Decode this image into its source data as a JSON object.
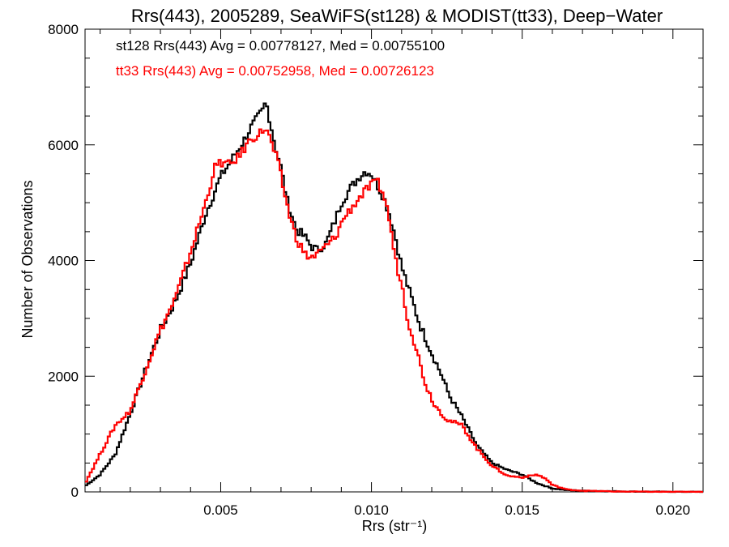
{
  "chart_data": {
    "type": "line",
    "title": "Rrs(443), 2005289, SeaWiFS(st128) & MODIST(tt33), Deep−Water",
    "xlabel": "Rrs (str⁻¹)",
    "ylabel": "Number of Observations",
    "xlim": [
      0.0005,
      0.021
    ],
    "ylim": [
      0,
      8000
    ],
    "x_ticks": [
      0.005,
      0.01,
      0.015,
      0.02
    ],
    "x_tick_labels": [
      "0.005",
      "0.010",
      "0.015",
      "0.020"
    ],
    "y_ticks": [
      0,
      2000,
      4000,
      6000,
      8000
    ],
    "y_tick_labels": [
      "0",
      "2000",
      "4000",
      "6000",
      "8000"
    ],
    "grid": false,
    "legend_position": "top-left",
    "series": [
      {
        "name": "st128 Rrs(443) Avg = 0.00778127, Med = 0.00755100",
        "color": "#000000",
        "x": [
          0.0005,
          0.001,
          0.0015,
          0.002,
          0.0025,
          0.003,
          0.0035,
          0.004,
          0.0045,
          0.005,
          0.0055,
          0.0058,
          0.006,
          0.0062,
          0.0064,
          0.0065,
          0.0066,
          0.0068,
          0.007,
          0.0072,
          0.0075,
          0.0078,
          0.008,
          0.0082,
          0.0085,
          0.0088,
          0.009,
          0.0093,
          0.0096,
          0.0098,
          0.01,
          0.0102,
          0.0104,
          0.0106,
          0.0108,
          0.011,
          0.0113,
          0.0116,
          0.012,
          0.0123,
          0.0126,
          0.013,
          0.0135,
          0.014,
          0.0145,
          0.015,
          0.0155,
          0.016,
          0.0165,
          0.017,
          0.018,
          0.019,
          0.02,
          0.021
        ],
        "y": [
          100,
          300,
          650,
          1350,
          2100,
          2800,
          3300,
          3950,
          4800,
          5450,
          5850,
          6100,
          6300,
          6450,
          6600,
          6750,
          6500,
          6000,
          5600,
          5050,
          4550,
          4400,
          4250,
          4180,
          4300,
          4700,
          5000,
          5250,
          5450,
          5550,
          5500,
          5300,
          5100,
          4800,
          4400,
          3900,
          3400,
          2900,
          2400,
          2050,
          1650,
          1300,
          800,
          500,
          380,
          300,
          150,
          60,
          30,
          20,
          10,
          5,
          2,
          0
        ]
      },
      {
        "name": "tt33 Rrs(443) Avg = 0.00752958, Med = 0.00726123",
        "color": "#ff0000",
        "x": [
          0.0005,
          0.001,
          0.0015,
          0.002,
          0.0025,
          0.003,
          0.0035,
          0.004,
          0.0045,
          0.0048,
          0.005,
          0.0053,
          0.0056,
          0.006,
          0.0063,
          0.0065,
          0.0067,
          0.0069,
          0.0071,
          0.0073,
          0.0075,
          0.0078,
          0.008,
          0.0082,
          0.0085,
          0.0088,
          0.0091,
          0.0094,
          0.0097,
          0.01,
          0.0102,
          0.0104,
          0.0106,
          0.0108,
          0.011,
          0.0112,
          0.0115,
          0.0118,
          0.0121,
          0.0125,
          0.013,
          0.0135,
          0.014,
          0.0145,
          0.015,
          0.0155,
          0.0158,
          0.016,
          0.0163,
          0.0165,
          0.017,
          0.018,
          0.019,
          0.02,
          0.021
        ],
        "y": [
          150,
          650,
          1150,
          1400,
          2100,
          2800,
          3350,
          4150,
          5000,
          5600,
          5700,
          5650,
          5800,
          6100,
          6200,
          6300,
          6000,
          5700,
          5200,
          4750,
          4400,
          4100,
          4050,
          4100,
          4250,
          4400,
          4750,
          4950,
          5150,
          5300,
          5350,
          5150,
          4700,
          4000,
          3600,
          3000,
          2450,
          1850,
          1500,
          1250,
          1150,
          750,
          450,
          280,
          250,
          300,
          220,
          120,
          70,
          40,
          20,
          8,
          3,
          1,
          0
        ]
      }
    ]
  }
}
